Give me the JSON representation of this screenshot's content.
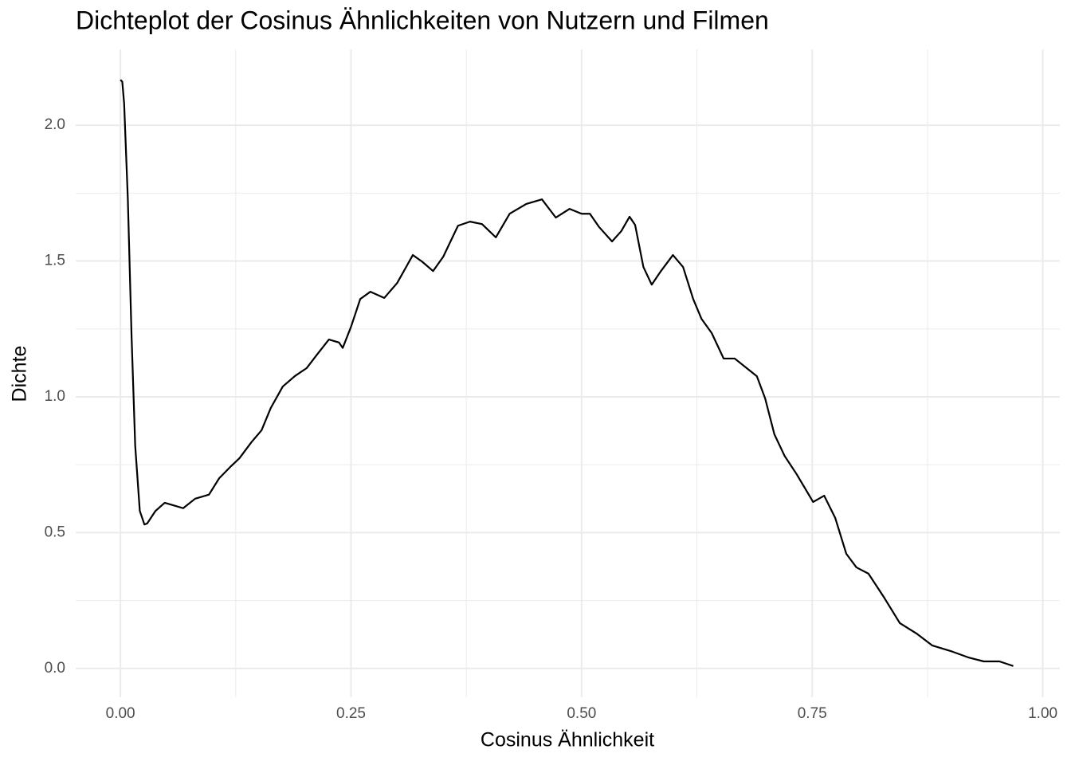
{
  "chart_data": {
    "type": "line",
    "title": "Dichteplot der Cosinus Ähnlichkeiten von Nutzern und Filmen",
    "x_label": "Cosinus Ähnlichkeit",
    "y_label": "Dichte",
    "color": "#000000",
    "grid": true,
    "xlim": [
      -0.0485,
      1.0185
    ],
    "ylim": [
      -0.106,
      2.279
    ],
    "xticks": [
      {
        "value": 0,
        "label": "0.00"
      },
      {
        "value": 0.25,
        "label": "0.25"
      },
      {
        "value": 0.5,
        "label": "0.50"
      },
      {
        "value": 0.75,
        "label": "0.75"
      },
      {
        "value": 1,
        "label": "1.00"
      }
    ],
    "yticks": [
      {
        "value": 0,
        "label": "0.0"
      },
      0.5,
      {
        "value": 1,
        "label": "1.0"
      },
      1.5,
      {
        "value": 2,
        "label": "2.0"
      }
    ],
    "xminorticks": [
      0.125,
      0.375,
      0.625,
      0.875
    ],
    "yminorticks": [
      0.25,
      0.75,
      1.25,
      1.75
    ],
    "x": [
      0,
      0.002,
      0.004,
      0.008,
      0.012,
      0.016,
      0.021,
      0.026,
      0.029,
      0.038,
      0.048,
      0.058,
      0.068,
      0.081,
      0.096,
      0.107,
      0.12,
      0.129,
      0.142,
      0.153,
      0.163,
      0.176,
      0.189,
      0.202,
      0.213,
      0.226,
      0.237,
      0.241,
      0.25,
      0.26,
      0.271,
      0.286,
      0.3,
      0.317,
      0.327,
      0.339,
      0.35,
      0.366,
      0.379,
      0.392,
      0.407,
      0.422,
      0.44,
      0.457,
      0.472,
      0.487,
      0.5,
      0.509,
      0.519,
      0.533,
      0.543,
      0.552,
      0.558,
      0.567,
      0.576,
      0.586,
      0.599,
      0.61,
      0.621,
      0.63,
      0.641,
      0.654,
      0.666,
      0.677,
      0.69,
      0.699,
      0.709,
      0.72,
      0.733,
      0.751,
      0.763,
      0.775,
      0.787,
      0.798,
      0.811,
      0.828,
      0.845,
      0.863,
      0.88,
      0.902,
      0.919,
      0.936,
      0.953,
      0.968
    ],
    "values": [
      2.167,
      2.16,
      2.08,
      1.73,
      1.23,
      0.82,
      0.58,
      0.53,
      0.534,
      0.58,
      0.61,
      0.6,
      0.59,
      0.625,
      0.64,
      0.7,
      0.745,
      0.774,
      0.833,
      0.877,
      0.959,
      1.038,
      1.076,
      1.106,
      1.155,
      1.211,
      1.2,
      1.18,
      1.258,
      1.36,
      1.387,
      1.364,
      1.419,
      1.522,
      1.498,
      1.463,
      1.516,
      1.63,
      1.645,
      1.636,
      1.587,
      1.674,
      1.71,
      1.727,
      1.66,
      1.692,
      1.674,
      1.674,
      1.625,
      1.572,
      1.61,
      1.663,
      1.633,
      1.478,
      1.413,
      1.463,
      1.522,
      1.478,
      1.36,
      1.287,
      1.235,
      1.141,
      1.141,
      1.111,
      1.076,
      0.994,
      0.862,
      0.783,
      0.716,
      0.613,
      0.636,
      0.554,
      0.422,
      0.372,
      0.349,
      0.261,
      0.167,
      0.129,
      0.085,
      0.062,
      0.041,
      0.026,
      0.026,
      0.009
    ]
  }
}
